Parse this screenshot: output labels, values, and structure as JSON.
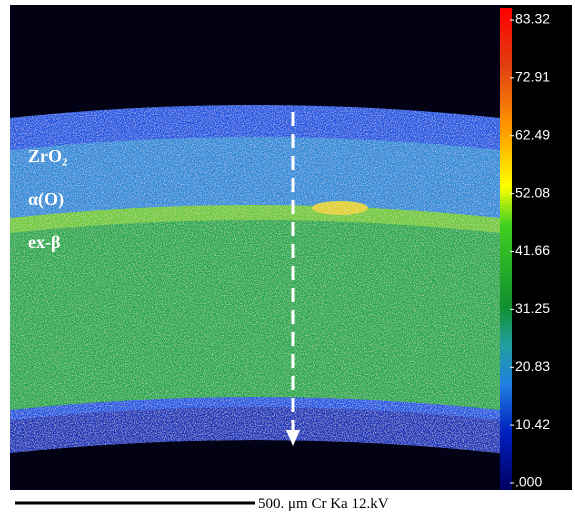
{
  "labels": {
    "layer_1": "ZrO₂",
    "layer_2": "α(O)",
    "layer_3": "ex-β"
  },
  "scale_bar": {
    "text": "500. μm  Cr Ka  12.kV"
  },
  "colorbar": {
    "ticks": [
      83.32,
      72.91,
      62.49,
      52.08,
      41.66,
      31.25,
      20.83,
      10.42,
      {
        "value": 0,
        "label": ".000"
      }
    ]
  }
}
